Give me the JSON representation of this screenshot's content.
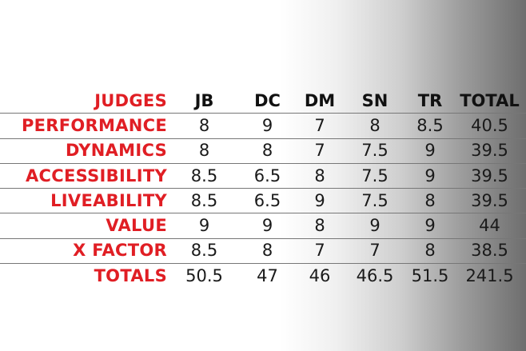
{
  "table": {
    "header_label": "JUDGES",
    "columns": [
      "JB",
      "DC",
      "DM",
      "SN",
      "TR",
      "TOTAL"
    ],
    "rows": [
      {
        "label": "PERFORMANCE",
        "values": [
          "8",
          "9",
          "7",
          "8",
          "8.5",
          "40.5"
        ]
      },
      {
        "label": "DYNAMICS",
        "values": [
          "8",
          "8",
          "7",
          "7.5",
          "9",
          "39.5"
        ]
      },
      {
        "label": "ACCESSIBILITY",
        "values": [
          "8.5",
          "6.5",
          "8",
          "7.5",
          "9",
          "39.5"
        ]
      },
      {
        "label": "LIVEABILITY",
        "values": [
          "8.5",
          "6.5",
          "9",
          "7.5",
          "8",
          "39.5"
        ]
      },
      {
        "label": "VALUE",
        "values": [
          "9",
          "9",
          "8",
          "9",
          "9",
          "44"
        ]
      },
      {
        "label": "X FACTOR",
        "values": [
          "8.5",
          "8",
          "7",
          "7",
          "8",
          "38.5"
        ]
      },
      {
        "label": "TOTALS",
        "values": [
          "50.5",
          "47",
          "46",
          "46.5",
          "51.5",
          "241.5"
        ]
      }
    ]
  },
  "colors": {
    "label_red": "#e01e24",
    "text_dark": "#1a1a1a",
    "rule_gray": "#777777"
  }
}
